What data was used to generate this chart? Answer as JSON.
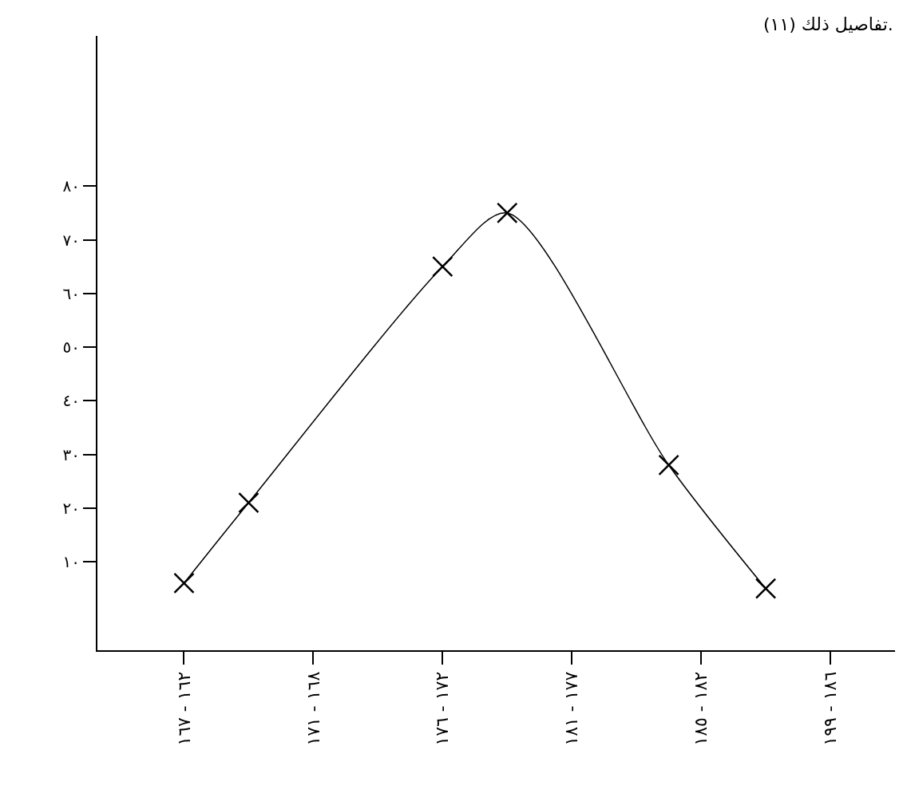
{
  "chart_data": {
    "type": "line",
    "annotations": [
      "(١١) تفاصيل ذلك."
    ],
    "categories": [
      "١٦٢ - ١٦٧",
      null,
      null,
      null,
      "١٦٨ - ١٧١",
      null,
      null,
      null,
      "١٧٢ - ١٧٦",
      null,
      null,
      null,
      "١٧٧ - ١٨١",
      null,
      null,
      null,
      "١٨٢ - ١٨٥",
      null,
      null,
      null,
      "١٨٦ - ١٩٩"
    ],
    "series": [
      {
        "color": "#000000",
        "values": [
          6,
          null,
          21,
          null,
          null,
          null,
          null,
          null,
          65,
          null,
          75,
          null,
          null,
          null,
          null,
          28,
          null,
          null,
          5,
          null,
          null
        ]
      }
    ],
    "ylim": [
      -6.5,
      108
    ],
    "yticks": [
      {
        "value": 10,
        "label": "١٠"
      },
      {
        "value": 20,
        "label": "٢٠"
      },
      {
        "value": 30,
        "label": "٣٠"
      },
      {
        "value": 40,
        "label": "٤٠"
      },
      {
        "value": 50,
        "label": "٥٠"
      },
      {
        "value": 60,
        "label": "٦٠"
      },
      {
        "value": 70,
        "label": "٧٠"
      },
      {
        "value": 80,
        "label": "٨٠"
      }
    ],
    "grid": false,
    "marker": "cross",
    "line_style": "solid"
  }
}
